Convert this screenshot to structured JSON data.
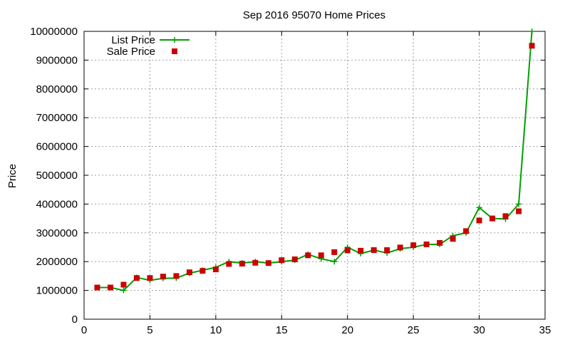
{
  "chart_data": {
    "type": "line",
    "title": "Sep 2016 95070 Home Prices",
    "xlabel": "",
    "ylabel": "Price",
    "xlim": [
      0,
      35
    ],
    "ylim": [
      0,
      10000000
    ],
    "xticks": [
      0,
      5,
      10,
      15,
      20,
      25,
      30,
      35
    ],
    "yticks": [
      0,
      1000000,
      2000000,
      3000000,
      4000000,
      5000000,
      6000000,
      7000000,
      8000000,
      9000000,
      10000000
    ],
    "xtick_labels": [
      "0",
      "5",
      "10",
      "15",
      "20",
      "25",
      "30",
      "35"
    ],
    "ytick_labels": [
      "0",
      "1000000",
      "2000000",
      "3000000",
      "4000000",
      "5000000",
      "6000000",
      "7000000",
      "8000000",
      "9000000",
      "10000000"
    ],
    "grid": true,
    "legend_position": "top-left",
    "series": [
      {
        "name": "List Price",
        "style": "line+plus",
        "color": "#00a000",
        "x": [
          1,
          2,
          3,
          4,
          5,
          6,
          7,
          8,
          9,
          10,
          11,
          12,
          13,
          14,
          15,
          16,
          17,
          18,
          19,
          20,
          21,
          22,
          23,
          24,
          25,
          26,
          27,
          28,
          29,
          30,
          31,
          32,
          33,
          34
        ],
        "values": [
          1100000,
          1100000,
          1000000,
          1450000,
          1350000,
          1420000,
          1430000,
          1600000,
          1700000,
          1800000,
          2000000,
          1950000,
          2000000,
          1950000,
          2000000,
          2050000,
          2250000,
          2100000,
          2000000,
          2500000,
          2280000,
          2400000,
          2300000,
          2450000,
          2500000,
          2600000,
          2600000,
          2900000,
          3000000,
          3880000,
          3500000,
          3480000,
          4000000,
          10000000
        ]
      },
      {
        "name": "Sale Price",
        "style": "square",
        "color": "#cc0000",
        "x": [
          1,
          2,
          3,
          4,
          5,
          6,
          7,
          8,
          9,
          10,
          11,
          12,
          13,
          14,
          15,
          16,
          17,
          18,
          19,
          20,
          21,
          22,
          23,
          24,
          25,
          26,
          27,
          28,
          29,
          30,
          31,
          32,
          33,
          34
        ],
        "values": [
          1100000,
          1100000,
          1200000,
          1430000,
          1430000,
          1480000,
          1500000,
          1630000,
          1680000,
          1730000,
          1920000,
          1930000,
          1960000,
          1950000,
          2050000,
          2080000,
          2220000,
          2220000,
          2330000,
          2390000,
          2380000,
          2400000,
          2400000,
          2490000,
          2570000,
          2600000,
          2650000,
          2790000,
          3060000,
          3430000,
          3500000,
          3580000,
          3750000,
          9500000
        ]
      }
    ]
  }
}
